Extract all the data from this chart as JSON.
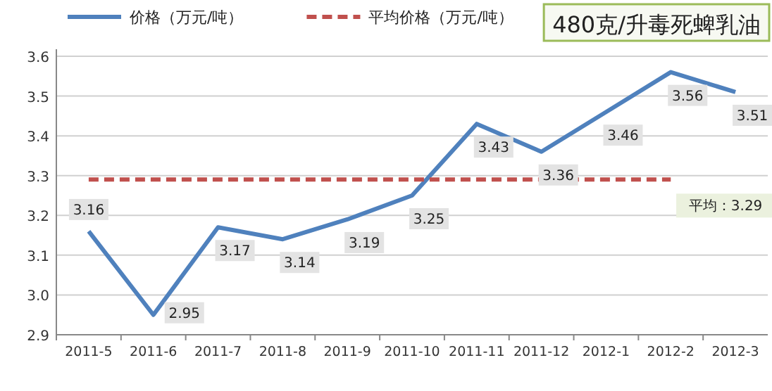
{
  "chart_data": {
    "type": "line",
    "title": "480克/升毒死蜱乳油",
    "categories": [
      "2011-5",
      "2011-6",
      "2011-7",
      "2011-8",
      "2011-9",
      "2011-10",
      "2011-11",
      "2011-12",
      "2012-1",
      "2012-2",
      "2012-3"
    ],
    "series": [
      {
        "name": "价格（万元/吨）",
        "color": "#4f81bd",
        "line_style": "solid",
        "values": [
          3.16,
          2.95,
          3.17,
          3.14,
          3.19,
          3.25,
          3.43,
          3.36,
          3.46,
          3.56,
          3.51
        ],
        "value_labels": [
          "3.16",
          "2.95",
          "3.17",
          "3.14",
          "3.19",
          "3.25",
          "3.43",
          "3.36",
          "3.46",
          "3.56",
          "3.51"
        ]
      },
      {
        "name": "平均价格（万元/吨）",
        "color": "#c0504d",
        "line_style": "dashed",
        "values": [
          3.29,
          3.29,
          3.29,
          3.29,
          3.29,
          3.29,
          3.29,
          3.29,
          3.29,
          3.29,
          null
        ]
      }
    ],
    "annotations": [
      "平均：3.29"
    ],
    "ylim": [
      2.9,
      3.6
    ],
    "yticks": [
      {
        "value": 2.9,
        "label": "2.9"
      },
      {
        "value": 3,
        "label": "3.0"
      },
      {
        "value": 3.1,
        "label": "3.1"
      },
      {
        "value": 3.2,
        "label": "3.2"
      },
      {
        "value": 3.3,
        "label": "3.3"
      },
      {
        "value": 3.4,
        "label": "3.4"
      },
      {
        "value": 3.5,
        "label": "3.5"
      },
      {
        "value": 3.6,
        "label": "3.6"
      }
    ],
    "grid": "y",
    "legend": "top left",
    "marker": "none"
  }
}
